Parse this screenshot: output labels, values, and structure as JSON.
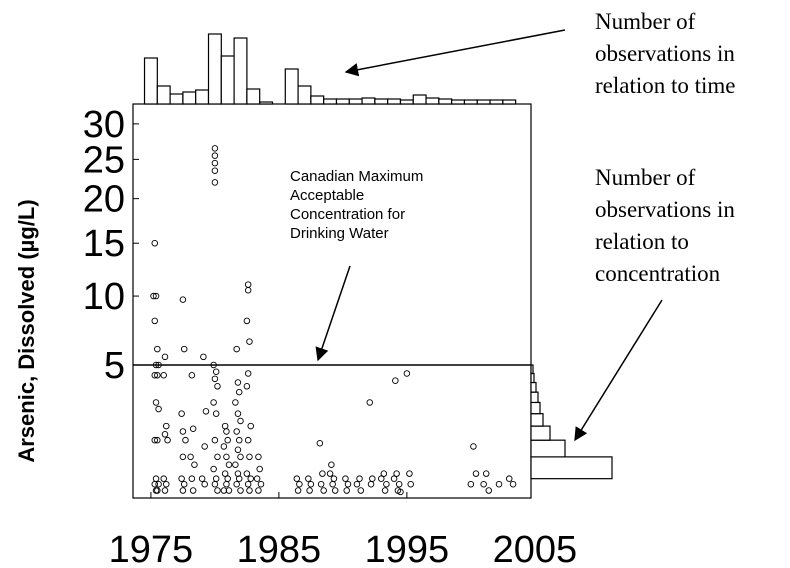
{
  "chart_data": [
    {
      "type": "scatter",
      "y_label": "Arsenic, Dissolved (µg/L)",
      "yscale": "sqrt",
      "xlim": [
        1973.6,
        2004.7
      ],
      "ylim": [
        0.2,
        33
      ],
      "xticks": [
        1975,
        1985,
        1995,
        2005
      ],
      "yticks": [
        5,
        10,
        15,
        20,
        25,
        30
      ],
      "reference_line": 5,
      "annotation": [
        "Canadian Maximum",
        "Acceptable",
        "Concentration for",
        "Drinking Water"
      ],
      "color": "#000000",
      "x": [
        1975.3,
        1975.2,
        1975.4,
        1975.3,
        1975.5,
        1975.4,
        1975.6,
        1975.3,
        1975.5,
        1975.4,
        1975.6,
        1975.3,
        1975.5,
        1975.4,
        1975.6,
        1975.3,
        1975.5,
        1975.4,
        1976.1,
        1976.0,
        1976.2,
        1976.1,
        1976.3,
        1976.0,
        1976.2,
        1976.1,
        1977.5,
        1977.6,
        1977.4,
        1977.5,
        1977.7,
        1977.5,
        1977.4,
        1977.6,
        1977.5,
        1978.2,
        1978.3,
        1978.1,
        1978.4,
        1978.2,
        1978.3,
        1979.1,
        1979.3,
        1979.2,
        1979.0,
        1979.2,
        1980.0,
        1980.0,
        1980.0,
        1980.0,
        1980.0,
        1979.9,
        1980.1,
        1980.0,
        1980.2,
        1979.9,
        1980.1,
        1980.0,
        1980.2,
        1979.9,
        1980.1,
        1980.0,
        1980.2,
        1980.8,
        1980.9,
        1981.0,
        1980.7,
        1980.9,
        1981.1,
        1980.8,
        1981.0,
        1980.9,
        1981.1,
        1980.7,
        1981.7,
        1981.8,
        1981.9,
        1981.6,
        1981.8,
        1982.0,
        1981.7,
        1981.9,
        1981.8,
        1982.0,
        1981.6,
        1981.8,
        1981.9,
        1981.7,
        1982.0,
        1982.6,
        1982.6,
        1982.5,
        1982.7,
        1982.6,
        1982.5,
        1982.8,
        1982.6,
        1982.7,
        1982.5,
        1982.8,
        1982.6,
        1982.7,
        1983.4,
        1983.5,
        1983.3,
        1983.6,
        1983.4,
        1986.4,
        1986.6,
        1986.5,
        1987.3,
        1987.5,
        1987.4,
        1988.2,
        1988.4,
        1988.3,
        1988.5,
        1989.1,
        1989.0,
        1989.3,
        1989.2,
        1989.4,
        1990.2,
        1990.4,
        1990.3,
        1991.3,
        1991.1,
        1991.4,
        1992.1,
        1992.3,
        1992.2,
        1993.2,
        1993.0,
        1993.4,
        1993.3,
        1994.1,
        1994.2,
        1994.0,
        1994.4,
        1994.3,
        1994.5,
        1995.0,
        1995.2,
        1995.3,
        2000.2,
        2000.4,
        2000.0,
        2001.2,
        2001.0,
        2001.4,
        2002.2,
        2003.0,
        2003.3
      ],
      "y": [
        15,
        10,
        10,
        8,
        6,
        5,
        5,
        4.4,
        4.4,
        3,
        2.7,
        1.5,
        1.5,
        0.5,
        0.4,
        0.4,
        0.3,
        0.3,
        5.5,
        4.4,
        2,
        1.7,
        1.5,
        0.5,
        0.4,
        0.3,
        9.7,
        6,
        2.5,
        1.8,
        1.5,
        1,
        0.5,
        0.4,
        0.3,
        4.4,
        1.9,
        1,
        0.8,
        0.5,
        0.3,
        5.5,
        2.6,
        1.3,
        0.5,
        0.4,
        26.5,
        25.5,
        24.5,
        23.5,
        22,
        5,
        4.6,
        4.2,
        3.8,
        3,
        2.5,
        1.5,
        1,
        0.7,
        0.5,
        0.4,
        0.3,
        2,
        1.8,
        1.5,
        1.3,
        1,
        0.8,
        0.6,
        0.5,
        0.4,
        0.3,
        0.3,
        6,
        4,
        3.5,
        3,
        2.5,
        2.2,
        1.8,
        1.5,
        1.2,
        1,
        0.8,
        0.6,
        0.5,
        0.4,
        0.3,
        11,
        10.5,
        8,
        6.5,
        4.5,
        3.8,
        2,
        1.5,
        1,
        0.6,
        0.5,
        0.4,
        0.3,
        1,
        0.7,
        0.5,
        0.4,
        0.3,
        0.5,
        0.4,
        0.3,
        0.5,
        0.4,
        0.3,
        1.4,
        0.6,
        0.4,
        0.3,
        0.8,
        0.6,
        0.5,
        0.4,
        0.3,
        0.5,
        0.4,
        0.3,
        0.5,
        0.4,
        0.3,
        3,
        0.5,
        0.4,
        0.6,
        0.5,
        0.4,
        0.3,
        4.1,
        0.6,
        0.5,
        0.4,
        0.3,
        0.28,
        4.5,
        0.6,
        0.4,
        1.3,
        0.6,
        0.4,
        0.6,
        0.4,
        0.3,
        0.4,
        0.5,
        0.4
      ]
    },
    {
      "type": "histogram",
      "orientation": "vertical",
      "annotation": [
        "Number of",
        "observations in",
        "relation to time"
      ],
      "bins": [
        1974.5,
        1975.5,
        1976.5,
        1977.5,
        1978.5,
        1979.5,
        1980.5,
        1981.5,
        1982.5,
        1983.5,
        1984.5,
        1985.5,
        1986.5,
        1987.5,
        1988.5,
        1989.5,
        1990.5,
        1991.5,
        1992.5,
        1993.5,
        1994.5,
        1995.5,
        1996.5,
        1997.5,
        1998.5,
        1999.5,
        2000.5,
        2001.5,
        2002.5,
        2003.5
      ],
      "counts": [
        46,
        18,
        10,
        12,
        14,
        70,
        48,
        66,
        15,
        2,
        0,
        35,
        18,
        8,
        5,
        5,
        5,
        6,
        5,
        5,
        4,
        9,
        6,
        5,
        4,
        4,
        4,
        4,
        4
      ]
    },
    {
      "type": "histogram",
      "orientation": "horizontal",
      "annotation": [
        "Number of",
        "observations in",
        "relation to",
        "concentration"
      ],
      "bins": [
        0.5,
        1,
        1.5,
        2,
        2.5,
        3,
        3.5,
        4,
        4.5,
        5
      ],
      "counts": [
        81,
        34,
        19,
        12,
        9,
        7,
        5,
        3,
        2
      ]
    }
  ]
}
